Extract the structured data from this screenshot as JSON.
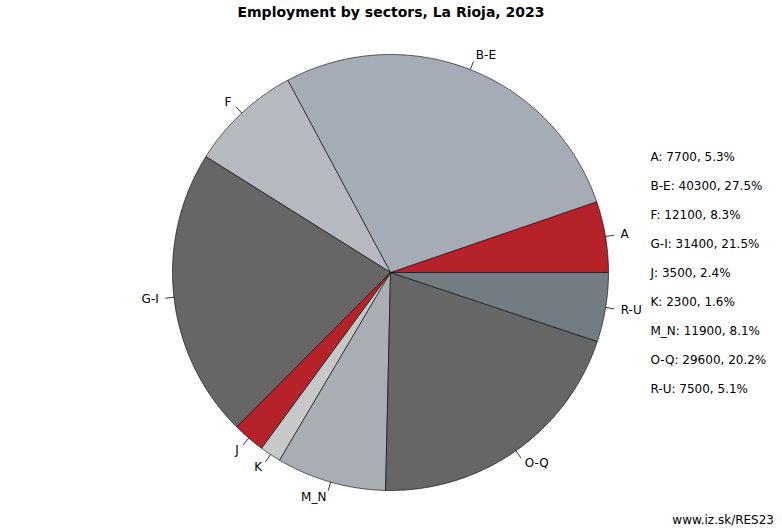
{
  "chart_data": {
    "type": "pie",
    "title": "Employment by sectors, La Rioja, 2023",
    "categories": [
      "A",
      "B-E",
      "F",
      "G-I",
      "J",
      "K",
      "M_N",
      "O-Q",
      "R-U"
    ],
    "values": [
      7700,
      40300,
      12100,
      31400,
      3500,
      2300,
      11900,
      29600,
      7500
    ],
    "shares": [
      5.3,
      27.5,
      8.3,
      21.5,
      2.4,
      1.6,
      8.1,
      20.2,
      5.1
    ],
    "value_labels": [
      "A: 7700, 5.3%",
      "B-E: 40300, 27.5%",
      "F: 12100, 8.3%",
      "G-I: 31400, 21.5%",
      "J: 3500, 2.4%",
      "K: 2300, 1.6%",
      "M_N: 11900, 8.1%",
      "O-Q: 29600, 20.2%",
      "R-U: 7500, 5.1%"
    ],
    "colors": [
      "#b5222a",
      "#a6acb5",
      "#b6b9c0",
      "#666666",
      "#b5222a",
      "#c8c8c8",
      "#a9aeb5",
      "#666666",
      "#737b83"
    ],
    "data_labels": true,
    "caption": "www.iz.sk/RES23"
  }
}
